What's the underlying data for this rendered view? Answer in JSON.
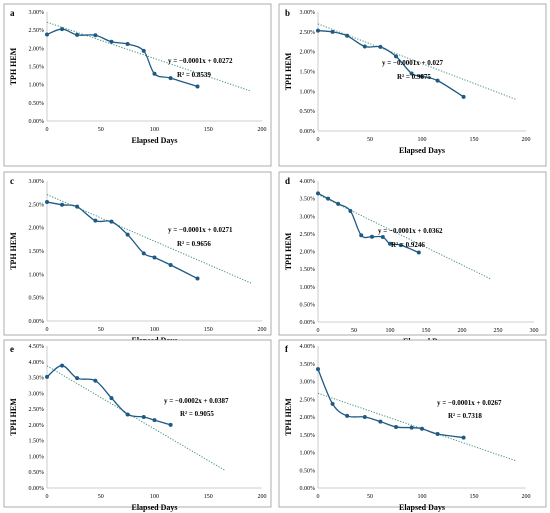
{
  "chart_data": [
    {
      "panel_label": "a",
      "type": "scatter",
      "series": [
        {
          "x": [
            0,
            14,
            28,
            45,
            60,
            75,
            90,
            100,
            115,
            140
          ],
          "y": [
            2.38,
            2.53,
            2.37,
            2.36,
            2.18,
            2.12,
            1.93,
            1.3,
            1.18,
            0.95
          ]
        }
      ],
      "trendline": {
        "slope": -0.0001,
        "intercept": 0.0272,
        "x_end": 190
      },
      "equation": "y = −0.0001x + 0.0272",
      "r2": "R² = 0.8539",
      "xlabel": "Elapsed Days",
      "ylabel": "TPH HEM",
      "xlim": [
        0,
        200
      ],
      "ylim": [
        0.0,
        3.0
      ],
      "xticks": [
        "0",
        "50",
        "100",
        "150",
        "200"
      ],
      "yticks": [
        "0.00%",
        "0.50%",
        "1.00%",
        "1.50%",
        "2.00%",
        "2.50%",
        "3.00%"
      ]
    },
    {
      "panel_label": "b",
      "type": "scatter",
      "series": [
        {
          "x": [
            0,
            14,
            28,
            45,
            60,
            75,
            90,
            100,
            115,
            140
          ],
          "y": [
            2.53,
            2.5,
            2.4,
            2.13,
            2.12,
            1.88,
            1.45,
            1.38,
            1.27,
            0.86
          ]
        }
      ],
      "trendline": {
        "slope": -0.0001,
        "intercept": 0.027,
        "x_end": 190
      },
      "equation": "y = −0.0001x + 0.027",
      "r2": "R² = 0.9675",
      "xlabel": "Elapsed Days",
      "ylabel": "TPH HEM",
      "xlim": [
        0,
        200
      ],
      "ylim": [
        0.0,
        3.0
      ],
      "xticks": [
        "0",
        "50",
        "100",
        "150",
        "200"
      ],
      "yticks": [
        "0.00%",
        "0.50%",
        "1.00%",
        "1.50%",
        "2.00%",
        "2.50%",
        "3.00%"
      ]
    },
    {
      "panel_label": "c",
      "type": "scatter",
      "series": [
        {
          "x": [
            0,
            14,
            28,
            45,
            60,
            75,
            90,
            100,
            115,
            140
          ],
          "y": [
            2.55,
            2.49,
            2.45,
            2.15,
            2.13,
            1.85,
            1.45,
            1.36,
            1.2,
            0.91
          ]
        }
      ],
      "trendline": {
        "slope": -0.0001,
        "intercept": 0.0271,
        "x_end": 190
      },
      "equation": "y = −0.0001x + 0.0271",
      "r2": "R² = 0.9656",
      "xlabel": "Elapsed Days",
      "ylabel": "TPH HEM",
      "xlim": [
        0,
        200
      ],
      "ylim": [
        0.0,
        3.0
      ],
      "xticks": [
        "0",
        "50",
        "100",
        "150",
        "200"
      ],
      "yticks": [
        "0.00%",
        "0.50%",
        "1.00%",
        "1.50%",
        "2.00%",
        "2.50%",
        "3.00%"
      ]
    },
    {
      "panel_label": "d",
      "type": "scatter",
      "series": [
        {
          "x": [
            0,
            14,
            28,
            45,
            60,
            75,
            90,
            100,
            115,
            140
          ],
          "y": [
            3.65,
            3.5,
            3.35,
            3.15,
            2.46,
            2.42,
            2.41,
            2.22,
            2.18,
            1.97
          ]
        }
      ],
      "trendline": {
        "slope": -0.0001,
        "intercept": 0.0362,
        "x_end": 240
      },
      "equation": "y = −0.0001x + 0.0362",
      "r2": "R² = 0.9246",
      "xlabel": "Elapsed Days",
      "ylabel": "TPH HEM",
      "xlim": [
        0,
        300
      ],
      "ylim": [
        0.0,
        4.0
      ],
      "xticks": [
        "0",
        "50",
        "100",
        "150",
        "200",
        "250",
        "300"
      ],
      "yticks": [
        "0.00%",
        "0.50%",
        "1.00%",
        "1.50%",
        "2.00%",
        "2.50%",
        "3.00%",
        "3.50%",
        "4.00%"
      ]
    },
    {
      "panel_label": "e",
      "type": "scatter",
      "series": [
        {
          "x": [
            0,
            14,
            28,
            45,
            60,
            75,
            90,
            100,
            115
          ],
          "y": [
            3.52,
            3.88,
            3.48,
            3.4,
            2.85,
            2.33,
            2.25,
            2.15,
            2.0
          ]
        }
      ],
      "trendline": {
        "slope": -0.0002,
        "intercept": 0.0387,
        "x_end": 165
      },
      "equation": "y = −0.0002x + 0.0387",
      "r2": "R² = 0.9055",
      "xlabel": "Elapsed Days",
      "ylabel": "TPH HEM",
      "xlim": [
        0,
        200
      ],
      "ylim": [
        0.0,
        4.5
      ],
      "xticks": [
        "0",
        "50",
        "100",
        "150",
        "200"
      ],
      "yticks": [
        "0.00%",
        "0.50%",
        "1.00%",
        "1.50%",
        "2.00%",
        "2.50%",
        "3.00%",
        "3.50%",
        "4.00%",
        "4.50%"
      ]
    },
    {
      "panel_label": "f",
      "type": "scatter",
      "series": [
        {
          "x": [
            0,
            14,
            28,
            45,
            60,
            75,
            90,
            100,
            115,
            140
          ],
          "y": [
            3.35,
            2.37,
            2.03,
            2.0,
            1.87,
            1.72,
            1.7,
            1.67,
            1.52,
            1.42
          ]
        }
      ],
      "trendline": {
        "slope": -0.0001,
        "intercept": 0.0267,
        "x_end": 190
      },
      "equation": "y = −0.0001x + 0.0267",
      "r2": "R² = 0.7318",
      "xlabel": "Elapsed Days",
      "ylabel": "TPH HEM",
      "xlim": [
        0,
        200
      ],
      "ylim": [
        0.0,
        4.0
      ],
      "xticks": [
        "0",
        "50",
        "100",
        "150",
        "200"
      ],
      "yticks": [
        "0.00%",
        "0.50%",
        "1.00%",
        "1.50%",
        "2.00%",
        "2.50%",
        "3.00%",
        "3.50%",
        "4.00%"
      ]
    }
  ],
  "colors": {
    "series_line": "#1f5a85",
    "marker": "#1f5a85",
    "trendline": "#3f8f7a",
    "axis": "#bfbfbf",
    "border": "#9a9a9a",
    "text": "#000000"
  }
}
